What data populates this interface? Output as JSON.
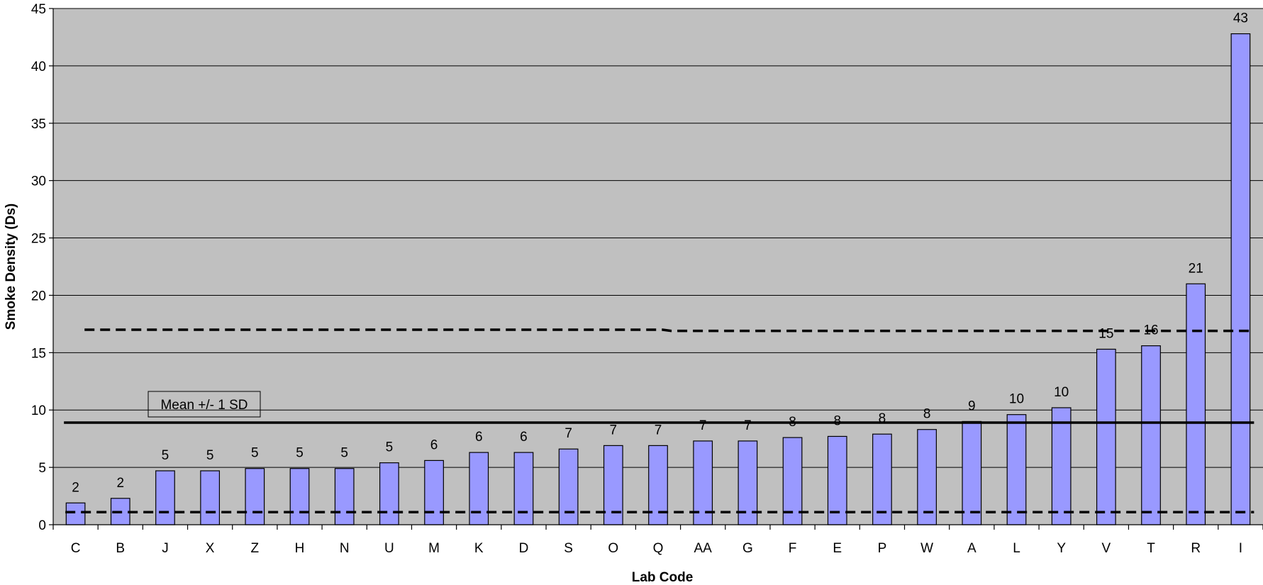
{
  "chart_data": {
    "type": "bar",
    "title": "",
    "xlabel": "Lab Code",
    "ylabel": "Smoke Density (Ds)",
    "ylim": [
      0,
      45
    ],
    "yticks": [
      0,
      5,
      10,
      15,
      20,
      25,
      30,
      35,
      40,
      45
    ],
    "grid": true,
    "categories": [
      "C",
      "B",
      "J",
      "X",
      "Z",
      "H",
      "N",
      "U",
      "M",
      "K",
      "D",
      "S",
      "O",
      "Q",
      "AA",
      "G",
      "F",
      "E",
      "P",
      "W",
      "A",
      "L",
      "Y",
      "V",
      "T",
      "R",
      "I"
    ],
    "values": [
      1.9,
      2.3,
      4.7,
      4.7,
      4.9,
      4.9,
      4.9,
      5.4,
      5.6,
      6.3,
      6.3,
      6.6,
      6.9,
      6.9,
      7.3,
      7.3,
      7.6,
      7.7,
      7.9,
      8.3,
      9.0,
      9.6,
      10.2,
      15.3,
      15.6,
      21.0,
      42.8
    ],
    "data_labels": [
      "2",
      "2",
      "5",
      "5",
      "5",
      "5",
      "5",
      "5",
      "6",
      "6",
      "6",
      "7",
      "7",
      "7",
      "7",
      "7",
      "8",
      "8",
      "8",
      "8",
      "9",
      "10",
      "10",
      "15",
      "16",
      "21",
      "43"
    ],
    "reference_lines": {
      "mean": 8.9,
      "upper_sd": [
        17.0,
        16.9
      ],
      "lower_sd": 1.1
    },
    "annotation": "Mean +/- 1 SD",
    "colors": {
      "plot_background": "#c0c0c0",
      "bar_fill": "#9999ff",
      "bar_stroke": "#000000",
      "gridline": "#000000"
    }
  }
}
